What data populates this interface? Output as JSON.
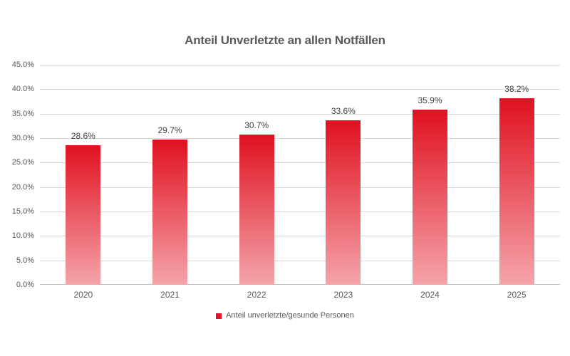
{
  "chart_data": {
    "type": "bar",
    "title": "Anteil Unverletzte an allen Notfällen",
    "categories": [
      "2020",
      "2021",
      "2022",
      "2023",
      "2024",
      "2025"
    ],
    "series": [
      {
        "name": "Anteil unverletzte/gesunde Personen",
        "values": [
          28.6,
          29.7,
          30.7,
          33.6,
          35.9,
          38.2
        ]
      }
    ],
    "data_labels": [
      "28.6%",
      "29.7%",
      "30.7%",
      "33.6%",
      "35.9%",
      "38.2%"
    ],
    "ylim": [
      0,
      45
    ],
    "ytick_step": 5,
    "yticks_top_to_bottom": [
      "45.0%",
      "40.0%",
      "35.0%",
      "30.0%",
      "25.0%",
      "20.0%",
      "15.0%",
      "10.0%",
      "5.0%",
      "0.0%"
    ],
    "grid": true,
    "legend_position": "bottom",
    "colors": {
      "bar_top": "#e01120",
      "bar_bottom": "#f5a4aa",
      "legend_marker": "#e3142b",
      "gridline": "#d9d9d9",
      "axis_line": "#bfbfbf",
      "title_text": "#595959",
      "tick_text": "#595959",
      "data_label_text": "#404040",
      "background": "#ffffff"
    }
  }
}
